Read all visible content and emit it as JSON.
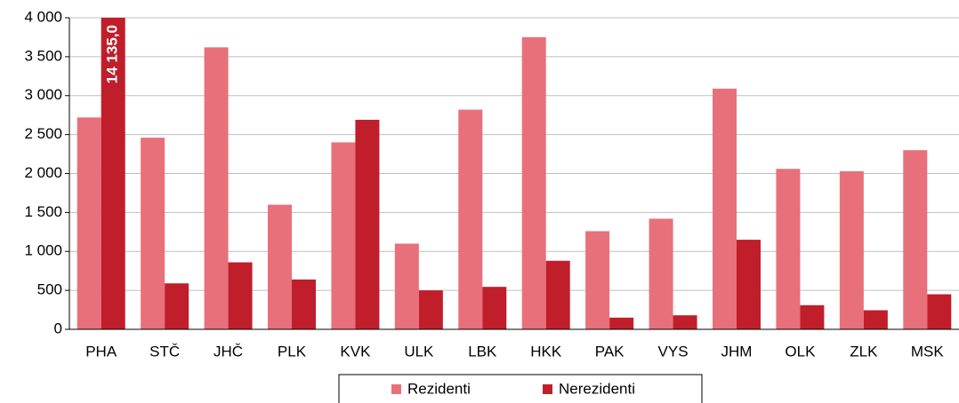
{
  "chart_data": {
    "type": "bar",
    "categories": [
      "PHA",
      "STČ",
      "JHČ",
      "PLK",
      "KVK",
      "ULK",
      "LBK",
      "HKK",
      "PAK",
      "VYS",
      "JHM",
      "OLK",
      "ZLK",
      "MSK"
    ],
    "series": [
      {
        "name": "Rezidenti",
        "color": "#e8707a",
        "values": [
          2720,
          2460,
          3620,
          1600,
          2400,
          1100,
          2820,
          3750,
          1260,
          1420,
          3090,
          2060,
          2030,
          2300
        ]
      },
      {
        "name": "Nerezidenti",
        "color": "#c01e2a",
        "values": [
          14135,
          590,
          860,
          640,
          2690,
          500,
          545,
          880,
          150,
          180,
          1150,
          310,
          245,
          450
        ],
        "value_labels": [
          "14 135,0",
          null,
          null,
          null,
          null,
          null,
          null,
          null,
          null,
          null,
          null,
          null,
          null,
          null
        ]
      }
    ],
    "ylim": [
      0,
      4000
    ],
    "yticks": [
      0,
      500,
      {
        "value": 1000,
        "label": "1 000"
      },
      {
        "value": 1500,
        "label": "1 500"
      },
      {
        "value": 2000,
        "label": "2 000"
      },
      {
        "value": 2500,
        "label": "2 500"
      },
      {
        "value": 3000,
        "label": "3 000"
      },
      {
        "value": 3500,
        "label": "3 500"
      },
      {
        "value": 4000,
        "label": "4 000"
      }
    ],
    "grid": true,
    "legend": "bottom"
  }
}
